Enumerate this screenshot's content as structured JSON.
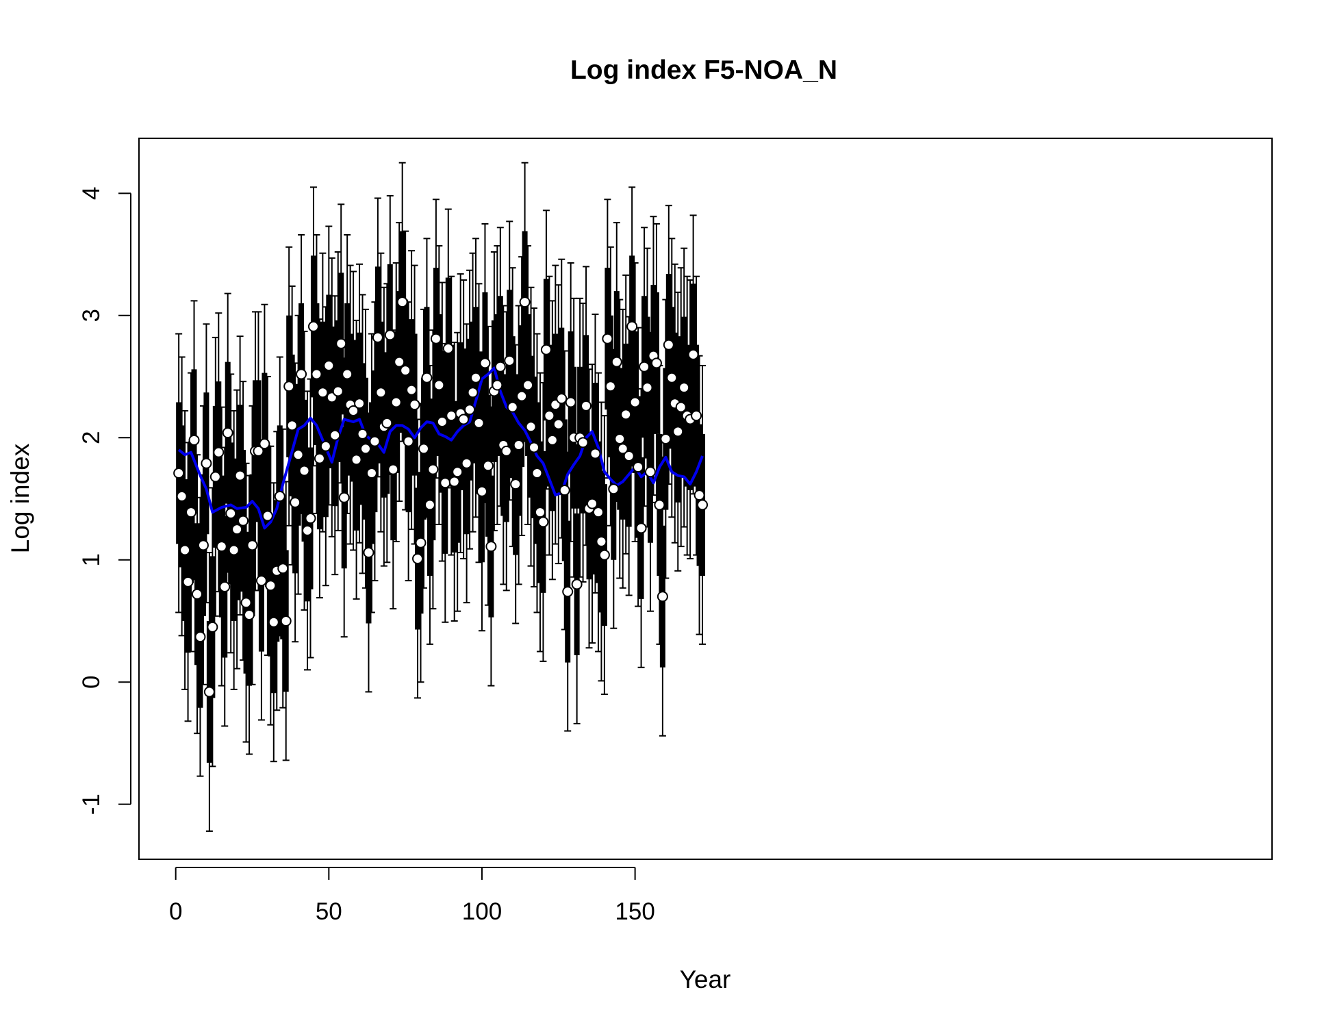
{
  "chart_data": {
    "type": "scatter",
    "title": "Log index F5-NOA_N",
    "xlabel": "Year",
    "ylabel": "Log index",
    "xlim": [
      -12,
      358
    ],
    "ylim": [
      -1.45,
      4.45
    ],
    "xticks": [
      0,
      50,
      100,
      150
    ],
    "yticks": [
      -1,
      0,
      1,
      2,
      3,
      4
    ],
    "grid": false,
    "legend": "none",
    "colors": {
      "points": "#000000",
      "point_fill": "#ffffff",
      "smooth": "#0000ee",
      "frame": "#000000"
    },
    "series": [
      {
        "type": "points_with_intervals",
        "x": [
          1,
          2,
          3,
          4,
          5,
          6,
          7,
          8,
          9,
          10,
          11,
          12,
          13,
          14,
          15,
          16,
          17,
          18,
          19,
          20,
          21,
          22,
          23,
          24,
          25,
          26,
          27,
          28,
          29,
          30,
          31,
          32,
          33,
          34,
          35,
          36,
          37,
          38,
          39,
          40,
          41,
          42,
          43,
          44,
          45,
          46,
          47,
          48,
          49,
          50,
          51,
          52,
          53,
          54,
          55,
          56,
          57,
          58,
          59,
          60,
          61,
          62,
          63,
          64,
          65,
          66,
          67,
          68,
          69,
          70,
          71,
          72,
          73,
          74,
          75,
          76,
          77,
          78,
          79,
          80,
          81,
          82,
          83,
          84,
          85,
          86,
          87,
          88,
          89,
          90,
          91,
          92,
          93,
          94,
          95,
          96,
          97,
          98,
          99,
          100,
          101,
          102,
          103,
          104,
          105,
          106,
          107,
          108,
          109,
          110,
          111,
          112,
          113,
          114,
          115,
          116,
          117,
          118,
          119,
          120,
          121,
          122,
          123,
          124,
          125,
          126,
          127,
          128,
          129,
          130,
          131,
          132,
          133,
          134,
          135,
          136,
          137,
          138,
          139,
          140,
          141,
          142,
          143,
          144,
          145,
          146,
          147,
          148,
          149,
          150,
          151,
          152,
          153,
          154,
          155,
          156,
          157,
          158,
          159,
          160,
          161,
          162,
          163,
          164,
          165,
          166,
          167,
          168,
          169,
          170,
          171,
          172
        ],
        "y": [
          1.71,
          1.52,
          1.08,
          0.82,
          1.39,
          1.98,
          0.72,
          0.37,
          1.12,
          1.79,
          -0.08,
          0.45,
          1.68,
          1.88,
          1.11,
          0.78,
          2.04,
          1.38,
          1.08,
          1.25,
          1.69,
          1.32,
          0.65,
          0.55,
          1.12,
          1.89,
          1.89,
          0.83,
          1.95,
          1.36,
          0.79,
          0.49,
          0.91,
          1.52,
          0.93,
          0.5,
          2.42,
          2.1,
          1.47,
          1.86,
          2.52,
          1.73,
          1.24,
          1.34,
          2.91,
          2.52,
          1.83,
          2.37,
          1.93,
          2.59,
          2.33,
          2.02,
          2.38,
          2.77,
          1.51,
          2.52,
          2.27,
          2.22,
          1.82,
          2.28,
          2.03,
          1.91,
          1.06,
          1.71,
          1.97,
          2.82,
          2.37,
          2.09,
          2.12,
          2.84,
          1.74,
          2.29,
          2.62,
          3.11,
          2.55,
          1.97,
          2.39,
          2.27,
          1.01,
          1.14,
          1.91,
          2.49,
          1.45,
          1.74,
          2.81,
          2.43,
          2.13,
          1.63,
          2.73,
          2.18,
          1.64,
          1.72,
          2.2,
          2.15,
          1.79,
          2.23,
          2.37,
          2.49,
          2.12,
          1.56,
          2.61,
          1.77,
          1.11,
          2.38,
          2.43,
          2.58,
          1.94,
          1.89,
          2.63,
          2.25,
          1.62,
          1.94,
          2.34,
          3.11,
          2.43,
          2.09,
          1.92,
          1.71,
          1.39,
          1.31,
          2.72,
          2.18,
          1.98,
          2.27,
          2.11,
          2.32,
          1.57,
          0.74,
          2.29,
          2.0,
          0.8,
          2.0,
          1.96,
          2.26,
          1.42,
          1.46,
          1.87,
          1.39,
          1.15,
          1.04,
          2.81,
          2.42,
          1.58,
          2.62,
          1.99,
          1.91,
          2.19,
          1.85,
          2.91,
          2.29,
          1.76,
          1.26,
          2.58,
          2.41,
          1.72,
          2.67,
          2.61,
          1.45,
          0.7,
          1.99,
          2.76,
          2.49,
          2.28,
          2.05,
          2.25,
          2.41,
          2.18,
          2.15,
          2.68,
          2.18,
          1.53,
          1.45
        ],
        "ci_outer_halfwidth": 1.14,
        "ci_inner_halfwidth": 0.58
      },
      {
        "type": "line",
        "x": [
          1,
          3,
          5,
          8,
          10,
          12,
          15,
          18,
          20,
          23,
          25,
          27,
          29,
          31,
          33,
          35,
          37,
          40,
          42,
          44,
          46,
          49,
          51,
          53,
          55,
          58,
          60,
          62,
          64,
          66,
          68,
          70,
          72,
          74,
          76,
          78,
          80,
          82,
          84,
          86,
          88,
          90,
          92,
          94,
          96,
          98,
          100,
          102,
          104,
          106,
          108,
          110,
          112,
          114,
          116,
          118,
          120,
          122,
          124,
          126,
          128,
          130,
          132,
          134,
          136,
          138,
          140,
          142,
          144,
          146,
          148,
          150,
          152,
          154,
          156,
          158,
          160,
          162,
          164,
          166,
          168,
          170,
          172
        ],
        "y": [
          1.9,
          1.86,
          1.88,
          1.69,
          1.58,
          1.39,
          1.43,
          1.45,
          1.42,
          1.43,
          1.48,
          1.42,
          1.26,
          1.31,
          1.42,
          1.62,
          1.8,
          2.07,
          2.1,
          2.16,
          2.1,
          1.92,
          1.8,
          2.0,
          2.15,
          2.13,
          2.15,
          2.02,
          1.98,
          1.95,
          1.88,
          2.05,
          2.1,
          2.1,
          2.07,
          2.0,
          2.08,
          2.13,
          2.12,
          2.03,
          2.01,
          1.98,
          2.05,
          2.1,
          2.13,
          2.3,
          2.48,
          2.52,
          2.57,
          2.38,
          2.25,
          2.21,
          2.12,
          2.06,
          1.96,
          1.85,
          1.79,
          1.66,
          1.53,
          1.55,
          1.7,
          1.78,
          1.85,
          2.0,
          2.05,
          1.92,
          1.72,
          1.66,
          1.61,
          1.64,
          1.7,
          1.76,
          1.68,
          1.72,
          1.63,
          1.76,
          1.84,
          1.72,
          1.69,
          1.68,
          1.62,
          1.72,
          1.85
        ]
      }
    ]
  }
}
